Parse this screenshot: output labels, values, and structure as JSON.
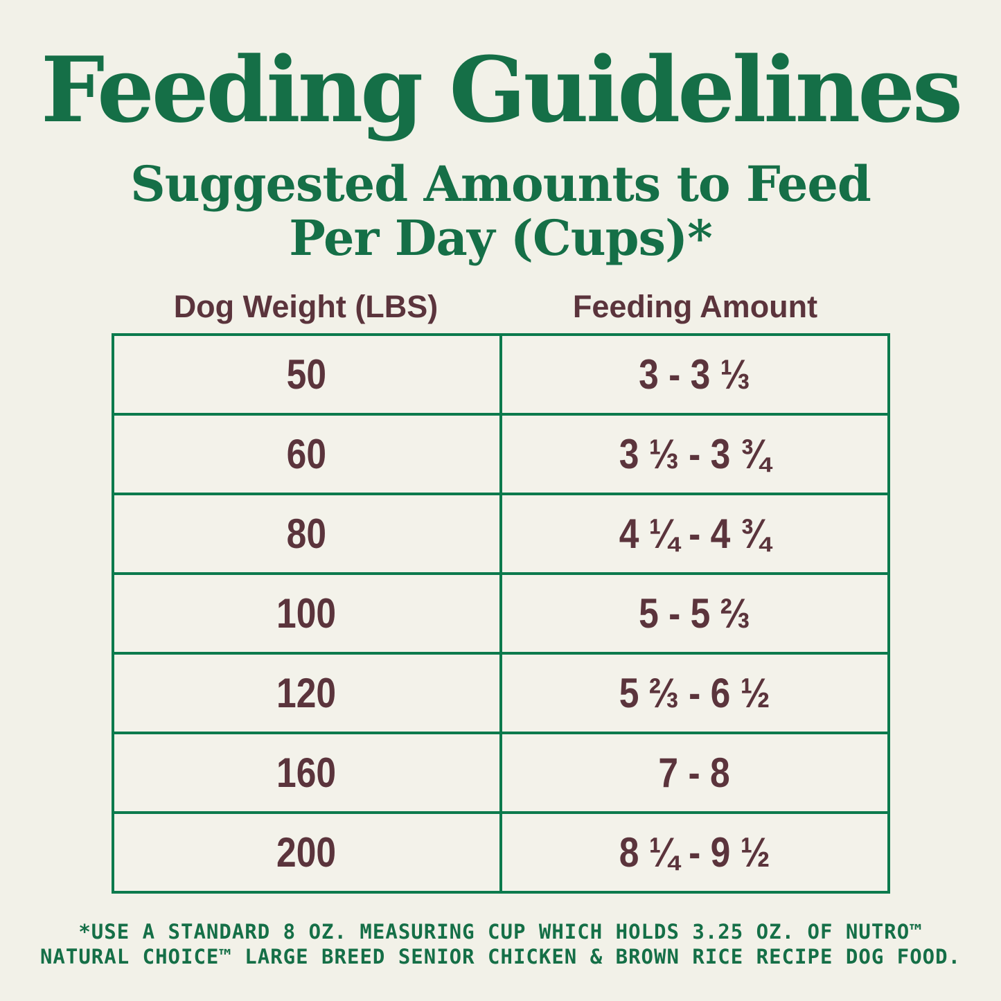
{
  "page": {
    "title": "Feeding Guidelines",
    "subtitle_line1": "Suggested Amounts to Feed",
    "subtitle_line2": "Per Day (Cups)*",
    "colors": {
      "heading_green": "#156f47",
      "table_border_green": "#0c7a4d",
      "text_maroon": "#5b343c",
      "background_cream": "#f2f1e8"
    }
  },
  "table": {
    "headers": [
      "Dog Weight (LBS)",
      "Feeding Amount"
    ],
    "rows": [
      {
        "weight": "50",
        "amount": "3 - 3 ⅓"
      },
      {
        "weight": "60",
        "amount": "3 ⅓ - 3 ¾"
      },
      {
        "weight": "80",
        "amount": "4 ¼ - 4 ¾"
      },
      {
        "weight": "100",
        "amount": "5 - 5 ⅔"
      },
      {
        "weight": "120",
        "amount": "5 ⅔ - 6 ½"
      },
      {
        "weight": "160",
        "amount": "7 - 8"
      },
      {
        "weight": "200",
        "amount": "8 ¼ - 9 ½"
      }
    ]
  },
  "footnote": {
    "line1": "*USE A STANDARD 8 OZ. MEASURING CUP WHICH HOLDS 3.25 OZ. OF NUTRO™",
    "line2": "NATURAL CHOICE™ LARGE BREED SENIOR CHICKEN & BROWN RICE RECIPE DOG FOOD."
  },
  "chart_data": {
    "type": "table",
    "title": "Feeding Guidelines",
    "subtitle": "Suggested Amounts to Feed Per Day (Cups)*",
    "columns": [
      "Dog Weight (LBS)",
      "Feeding Amount"
    ],
    "rows": [
      [
        "50",
        "3 - 3 ⅓"
      ],
      [
        "60",
        "3 ⅓ - 3 ¾"
      ],
      [
        "80",
        "4 ¼ - 4 ¾"
      ],
      [
        "100",
        "5 - 5 ⅔"
      ],
      [
        "120",
        "5 ⅔ - 6 ½"
      ],
      [
        "160",
        "7 - 8"
      ],
      [
        "200",
        "8 ¼ - 9 ½"
      ]
    ],
    "numeric_rows": [
      {
        "dog_weight_lbs": 50,
        "cups_min": 3,
        "cups_max": 3.33
      },
      {
        "dog_weight_lbs": 60,
        "cups_min": 3.33,
        "cups_max": 3.75
      },
      {
        "dog_weight_lbs": 80,
        "cups_min": 4.25,
        "cups_max": 4.75
      },
      {
        "dog_weight_lbs": 100,
        "cups_min": 5,
        "cups_max": 5.67
      },
      {
        "dog_weight_lbs": 120,
        "cups_min": 5.67,
        "cups_max": 6.5
      },
      {
        "dog_weight_lbs": 160,
        "cups_min": 7,
        "cups_max": 8
      },
      {
        "dog_weight_lbs": 200,
        "cups_min": 8.25,
        "cups_max": 9.5
      }
    ],
    "footnote": "*USE A STANDARD 8 OZ. MEASURING CUP WHICH HOLDS 3.25 OZ. OF NUTRO™ NATURAL CHOICE™ LARGE BREED SENIOR CHICKEN & BROWN RICE RECIPE DOG FOOD."
  }
}
